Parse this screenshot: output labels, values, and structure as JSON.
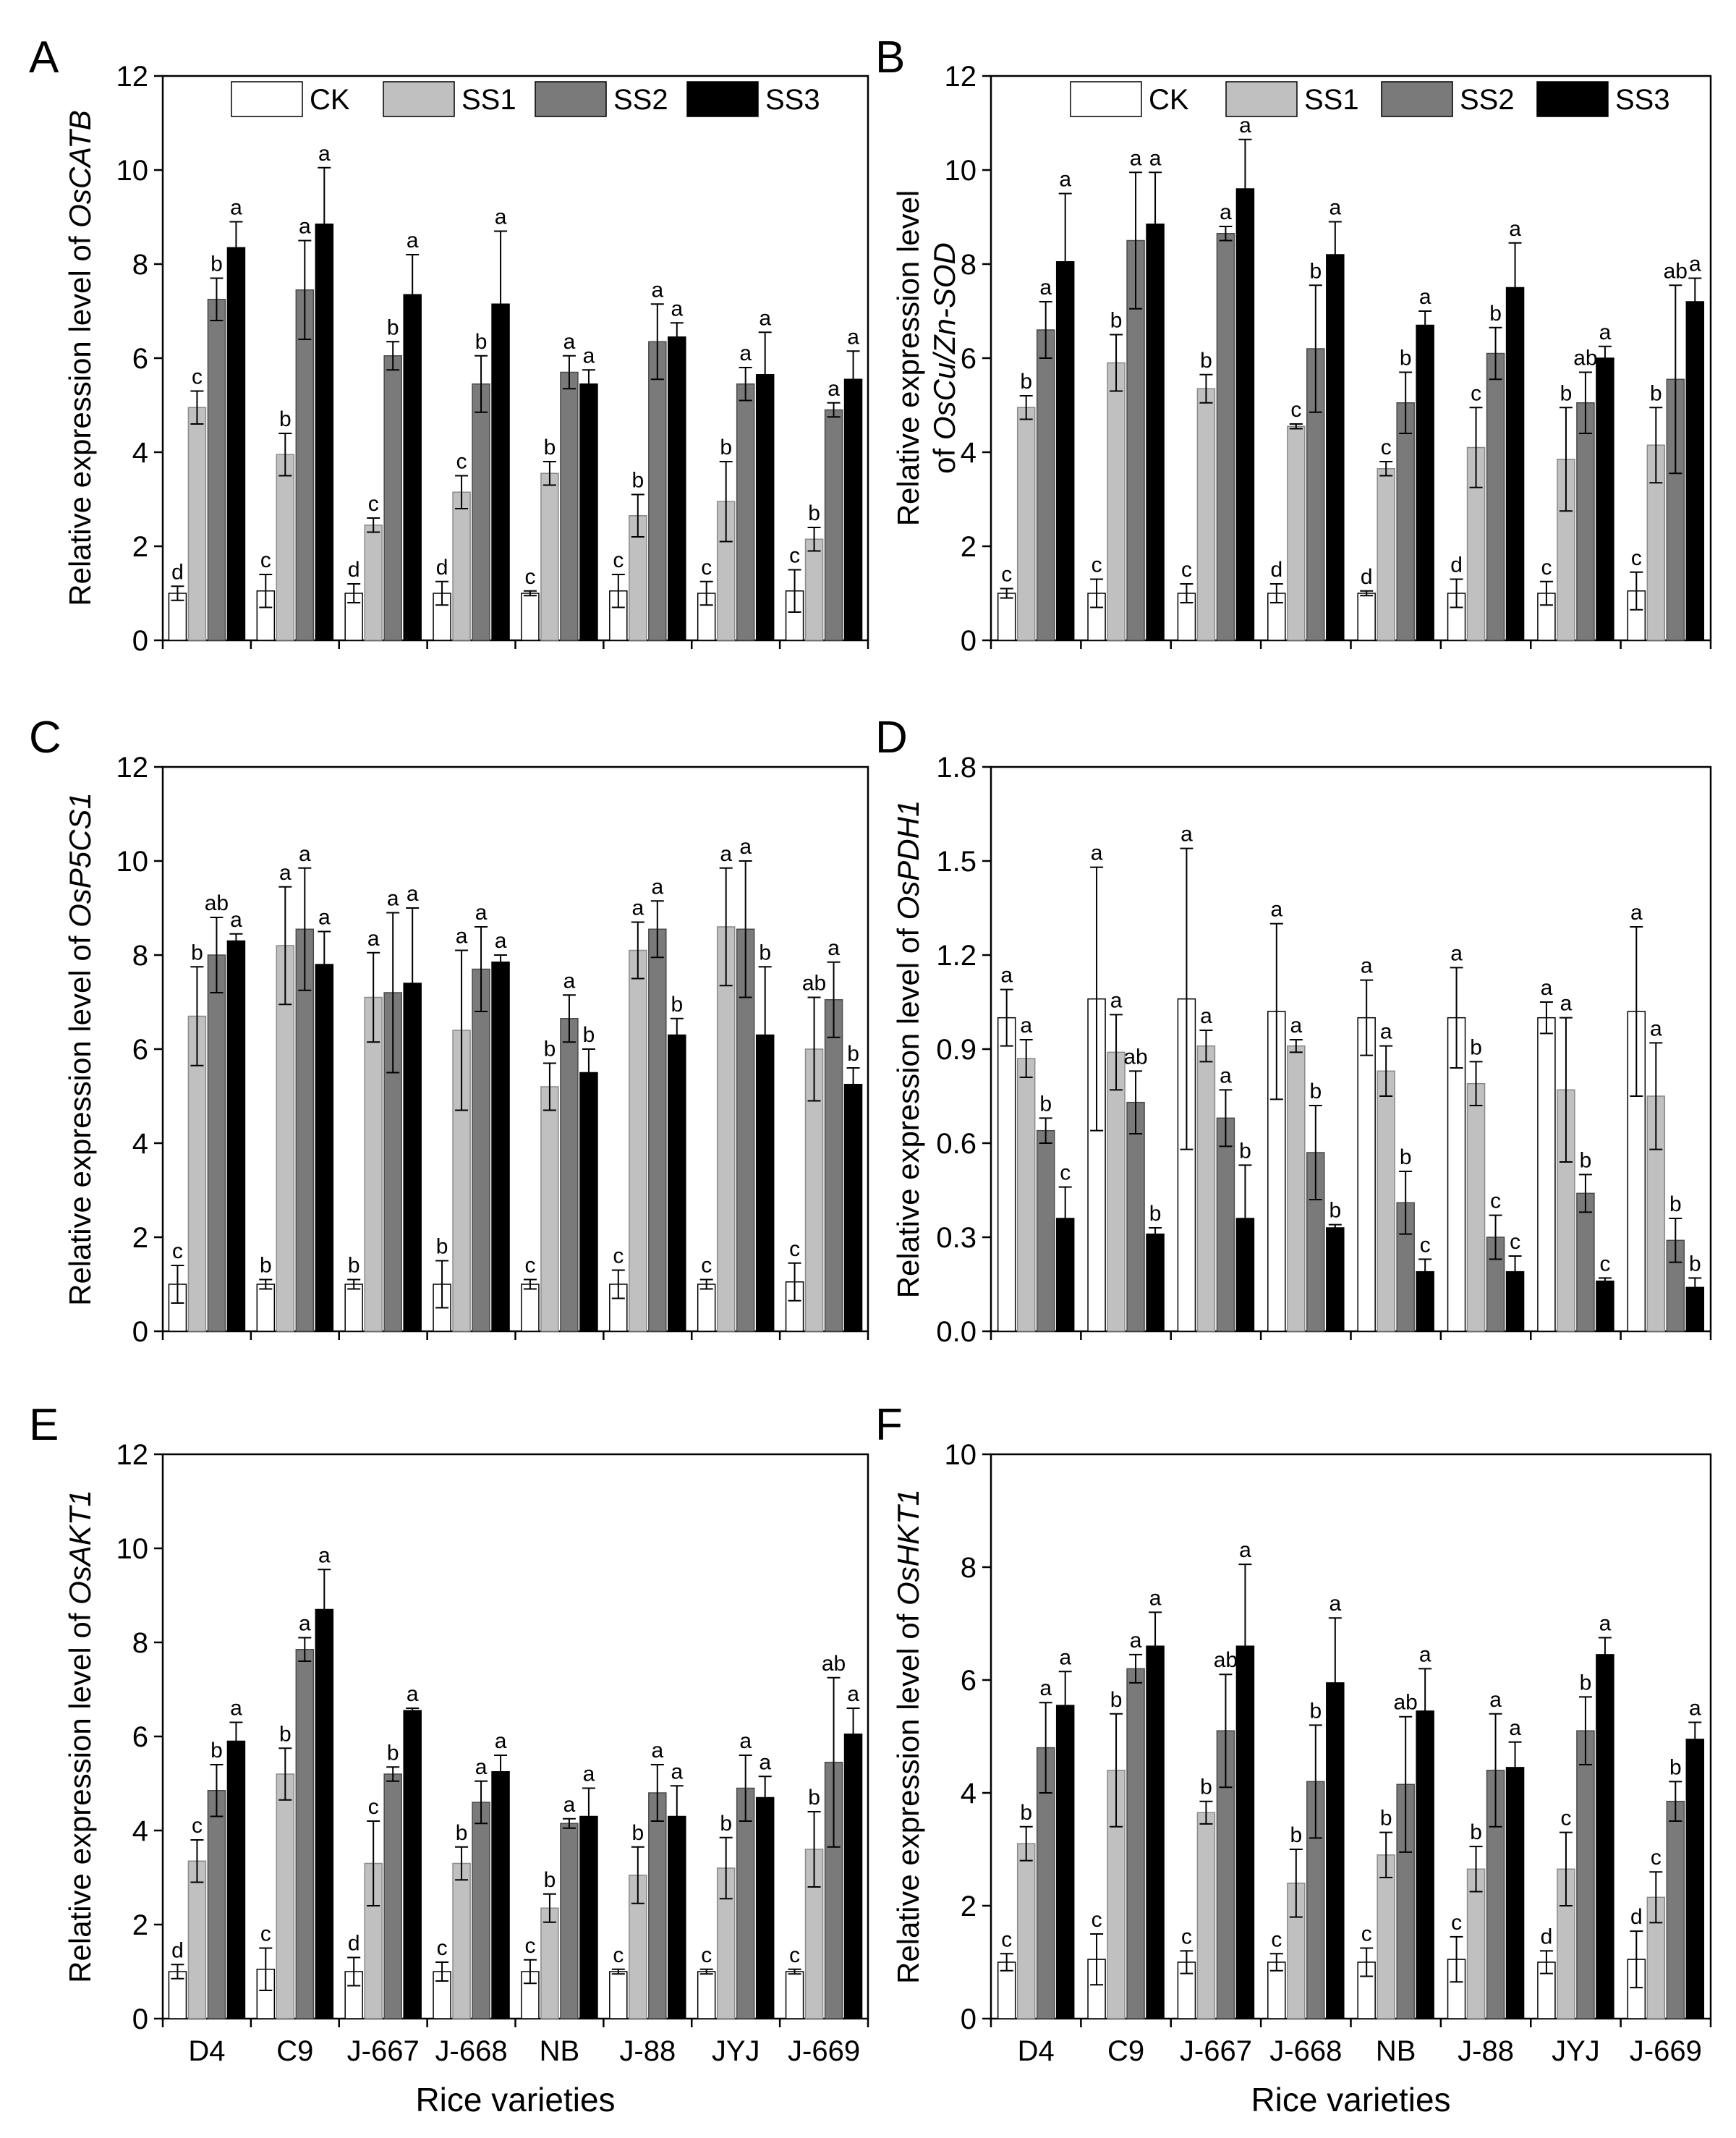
{
  "figure": {
    "x_axis_title": "Rice varieties",
    "categories": [
      "D4",
      "C9",
      "J-667",
      "J-668",
      "NB",
      "J-88",
      "JYJ",
      "J-669"
    ],
    "legend": [
      {
        "label": "CK",
        "color": "#ffffff"
      },
      {
        "label": "SS1",
        "color": "#c0c0c0"
      },
      {
        "label": "SS2",
        "color": "#7a7a7a"
      },
      {
        "label": "SS3",
        "color": "#000000"
      }
    ]
  },
  "chart_data": [
    {
      "panel": "A",
      "type": "bar",
      "ylabel_prefix": "Relative expression level of ",
      "gene": "OsCATB",
      "ylim": [
        0,
        12
      ],
      "yticks": [
        0,
        2,
        4,
        6,
        8,
        10,
        12
      ],
      "decimals": 0,
      "categories": [
        "D4",
        "C9",
        "J-667",
        "J-668",
        "NB",
        "J-88",
        "JYJ",
        "J-669"
      ],
      "series": [
        {
          "name": "CK",
          "values": [
            1.0,
            1.05,
            1.0,
            1.0,
            1.0,
            1.05,
            1.0,
            1.05
          ],
          "errors": [
            0.15,
            0.35,
            0.2,
            0.25,
            0.05,
            0.35,
            0.25,
            0.45
          ],
          "letters": [
            "d",
            "c",
            "d",
            "d",
            "c",
            "c",
            "c",
            "c"
          ]
        },
        {
          "name": "SS1",
          "values": [
            4.95,
            3.95,
            2.45,
            3.15,
            3.55,
            2.65,
            2.95,
            2.15
          ],
          "errors": [
            0.35,
            0.45,
            0.15,
            0.35,
            0.25,
            0.45,
            0.85,
            0.25
          ],
          "letters": [
            "c",
            "b",
            "c",
            "c",
            "b",
            "b",
            "b",
            "b"
          ]
        },
        {
          "name": "SS2",
          "values": [
            7.25,
            7.45,
            6.05,
            5.45,
            5.7,
            6.35,
            5.45,
            4.9
          ],
          "errors": [
            0.45,
            1.05,
            0.3,
            0.6,
            0.35,
            0.8,
            0.35,
            0.15
          ],
          "letters": [
            "b",
            "a",
            "b",
            "b",
            "a",
            "a",
            "a",
            "a"
          ]
        },
        {
          "name": "SS3",
          "values": [
            8.35,
            8.85,
            7.35,
            7.15,
            5.45,
            6.45,
            5.65,
            5.55
          ],
          "errors": [
            0.55,
            1.2,
            0.85,
            1.55,
            0.3,
            0.3,
            0.9,
            0.6
          ],
          "letters": [
            "a",
            "a",
            "a",
            "a",
            "a",
            "a",
            "a",
            "a"
          ]
        }
      ]
    },
    {
      "panel": "B",
      "type": "bar",
      "ylabel_prefix": "Relative expression level",
      "ylabel_line2_prefix": "of ",
      "gene": "OsCu/Zn-SOD",
      "ylim": [
        0,
        12
      ],
      "yticks": [
        0,
        2,
        4,
        6,
        8,
        10,
        12
      ],
      "decimals": 0,
      "categories": [
        "D4",
        "C9",
        "J-667",
        "J-668",
        "NB",
        "J-88",
        "JYJ",
        "J-669"
      ],
      "series": [
        {
          "name": "CK",
          "values": [
            1.0,
            1.0,
            1.0,
            1.0,
            1.0,
            1.0,
            1.0,
            1.05
          ],
          "errors": [
            0.1,
            0.3,
            0.2,
            0.2,
            0.05,
            0.3,
            0.25,
            0.4
          ],
          "letters": [
            "c",
            "c",
            "c",
            "d",
            "d",
            "d",
            "c",
            "c"
          ]
        },
        {
          "name": "SS1",
          "values": [
            4.95,
            5.9,
            5.35,
            4.55,
            3.65,
            4.1,
            3.85,
            4.15
          ],
          "errors": [
            0.25,
            0.6,
            0.3,
            0.05,
            0.15,
            0.85,
            1.1,
            0.8
          ],
          "letters": [
            "b",
            "b",
            "b",
            "c",
            "c",
            "c",
            "b",
            "b"
          ]
        },
        {
          "name": "SS2",
          "values": [
            6.6,
            8.5,
            8.65,
            6.2,
            5.05,
            6.1,
            5.05,
            5.55
          ],
          "errors": [
            0.6,
            1.45,
            0.15,
            1.35,
            0.65,
            0.55,
            0.65,
            2.0
          ],
          "letters": [
            "a",
            "a",
            "a",
            "b",
            "b",
            "b",
            "ab",
            "ab"
          ]
        },
        {
          "name": "SS3",
          "values": [
            8.05,
            8.85,
            9.6,
            8.2,
            6.7,
            7.5,
            6.0,
            7.2
          ],
          "errors": [
            1.45,
            1.1,
            1.05,
            0.7,
            0.3,
            0.95,
            0.25,
            0.5
          ],
          "letters": [
            "a",
            "a",
            "a",
            "a",
            "a",
            "a",
            "a",
            "a"
          ]
        }
      ]
    },
    {
      "panel": "C",
      "type": "bar",
      "ylabel_prefix": "Relative expression level of ",
      "gene": "OsP5CS1",
      "ylim": [
        0,
        12
      ],
      "yticks": [
        0,
        2,
        4,
        6,
        8,
        10,
        12
      ],
      "decimals": 0,
      "categories": [
        "D4",
        "C9",
        "J-667",
        "J-668",
        "NB",
        "J-88",
        "JYJ",
        "J-669"
      ],
      "series": [
        {
          "name": "CK",
          "values": [
            1.0,
            1.0,
            1.0,
            1.0,
            1.0,
            1.0,
            1.0,
            1.05
          ],
          "errors": [
            0.4,
            0.1,
            0.1,
            0.5,
            0.1,
            0.3,
            0.1,
            0.4
          ],
          "letters": [
            "c",
            "b",
            "b",
            "b",
            "c",
            "c",
            "c",
            "c"
          ]
        },
        {
          "name": "SS1",
          "values": [
            6.7,
            8.2,
            7.1,
            6.4,
            5.2,
            8.1,
            8.6,
            6.0
          ],
          "errors": [
            1.05,
            1.25,
            0.95,
            1.7,
            0.5,
            0.6,
            1.25,
            1.1
          ],
          "letters": [
            "b",
            "a",
            "a",
            "a",
            "b",
            "a",
            "a",
            "ab"
          ]
        },
        {
          "name": "SS2",
          "values": [
            8.0,
            8.55,
            7.2,
            7.7,
            6.65,
            8.55,
            8.55,
            7.05
          ],
          "errors": [
            0.8,
            1.3,
            1.7,
            0.9,
            0.5,
            0.6,
            1.45,
            0.8
          ],
          "letters": [
            "ab",
            "a",
            "a",
            "a",
            "a",
            "a",
            "a",
            "a"
          ]
        },
        {
          "name": "SS3",
          "values": [
            8.3,
            7.8,
            7.4,
            7.85,
            5.5,
            6.3,
            6.3,
            5.25
          ],
          "errors": [
            0.15,
            0.7,
            1.6,
            0.15,
            0.5,
            0.35,
            1.45,
            0.35
          ],
          "letters": [
            "a",
            "a",
            "a",
            "a",
            "b",
            "b",
            "b",
            "b"
          ]
        }
      ]
    },
    {
      "panel": "D",
      "type": "bar",
      "ylabel_prefix": "Relative expression level of ",
      "gene": "OsPDH1",
      "ylim": [
        0,
        1.8
      ],
      "yticks": [
        0.0,
        0.3,
        0.6,
        0.9,
        1.2,
        1.5,
        1.8
      ],
      "decimals": 1,
      "categories": [
        "D4",
        "C9",
        "J-667",
        "J-668",
        "NB",
        "J-88",
        "JYJ",
        "J-669"
      ],
      "series": [
        {
          "name": "CK",
          "values": [
            1.0,
            1.06,
            1.06,
            1.02,
            1.0,
            1.0,
            1.0,
            1.02
          ],
          "errors": [
            0.09,
            0.42,
            0.48,
            0.28,
            0.12,
            0.16,
            0.05,
            0.27
          ],
          "letters": [
            "a",
            "a",
            "a",
            "a",
            "a",
            "a",
            "a",
            "a"
          ]
        },
        {
          "name": "SS1",
          "values": [
            0.87,
            0.89,
            0.91,
            0.91,
            0.83,
            0.79,
            0.77,
            0.75
          ],
          "errors": [
            0.06,
            0.12,
            0.05,
            0.02,
            0.08,
            0.07,
            0.23,
            0.17
          ],
          "letters": [
            "a",
            "a",
            "a",
            "a",
            "a",
            "b",
            "a",
            "a"
          ]
        },
        {
          "name": "SS2",
          "values": [
            0.64,
            0.73,
            0.68,
            0.57,
            0.41,
            0.3,
            0.44,
            0.29
          ],
          "errors": [
            0.04,
            0.1,
            0.09,
            0.15,
            0.1,
            0.07,
            0.06,
            0.07
          ],
          "letters": [
            "b",
            "ab",
            "a",
            "b",
            "b",
            "c",
            "b",
            "b"
          ]
        },
        {
          "name": "SS3",
          "values": [
            0.36,
            0.31,
            0.36,
            0.33,
            0.19,
            0.19,
            0.16,
            0.14
          ],
          "errors": [
            0.1,
            0.02,
            0.17,
            0.01,
            0.04,
            0.05,
            0.01,
            0.03
          ],
          "letters": [
            "c",
            "b",
            "b",
            "b",
            "c",
            "c",
            "c",
            "b"
          ]
        }
      ]
    },
    {
      "panel": "E",
      "type": "bar",
      "ylabel_prefix": "Relative expression level of ",
      "gene": "OsAKT1",
      "ylim": [
        0,
        12
      ],
      "yticks": [
        0,
        2,
        4,
        6,
        8,
        10,
        12
      ],
      "decimals": 0,
      "categories": [
        "D4",
        "C9",
        "J-667",
        "J-668",
        "NB",
        "J-88",
        "JYJ",
        "J-669"
      ],
      "series": [
        {
          "name": "CK",
          "values": [
            1.0,
            1.05,
            1.0,
            1.0,
            1.0,
            1.0,
            1.0,
            1.0
          ],
          "errors": [
            0.15,
            0.45,
            0.3,
            0.2,
            0.25,
            0.05,
            0.05,
            0.05
          ],
          "letters": [
            "d",
            "c",
            "d",
            "c",
            "c",
            "c",
            "c",
            "c"
          ]
        },
        {
          "name": "SS1",
          "values": [
            3.35,
            5.2,
            3.3,
            3.3,
            2.35,
            3.05,
            3.2,
            3.6
          ],
          "errors": [
            0.45,
            0.55,
            0.9,
            0.35,
            0.3,
            0.6,
            0.65,
            0.8
          ],
          "letters": [
            "c",
            "b",
            "c",
            "b",
            "b",
            "b",
            "b",
            "b"
          ]
        },
        {
          "name": "SS2",
          "values": [
            4.85,
            7.85,
            5.2,
            4.6,
            4.15,
            4.8,
            4.9,
            5.45
          ],
          "errors": [
            0.55,
            0.25,
            0.15,
            0.45,
            0.1,
            0.6,
            0.7,
            1.8
          ],
          "letters": [
            "b",
            "a",
            "b",
            "a",
            "a",
            "a",
            "a",
            "ab"
          ]
        },
        {
          "name": "SS3",
          "values": [
            5.9,
            8.7,
            6.55,
            5.25,
            4.3,
            4.3,
            4.7,
            6.05
          ],
          "errors": [
            0.4,
            0.85,
            0.05,
            0.35,
            0.6,
            0.65,
            0.45,
            0.55
          ],
          "letters": [
            "a",
            "a",
            "a",
            "a",
            "a",
            "a",
            "a",
            "a"
          ]
        }
      ]
    },
    {
      "panel": "F",
      "type": "bar",
      "ylabel_prefix": "Relative expression level of ",
      "gene": "OsHKT1",
      "ylim": [
        0,
        10
      ],
      "yticks": [
        0,
        2,
        4,
        6,
        8,
        10
      ],
      "decimals": 0,
      "categories": [
        "D4",
        "C9",
        "J-667",
        "J-668",
        "NB",
        "J-88",
        "JYJ",
        "J-669"
      ],
      "series": [
        {
          "name": "CK",
          "values": [
            1.0,
            1.05,
            1.0,
            1.0,
            1.0,
            1.05,
            1.0,
            1.05
          ],
          "errors": [
            0.15,
            0.45,
            0.2,
            0.15,
            0.25,
            0.4,
            0.2,
            0.5
          ],
          "letters": [
            "c",
            "c",
            "c",
            "c",
            "c",
            "c",
            "d",
            "d"
          ]
        },
        {
          "name": "SS1",
          "values": [
            3.1,
            4.4,
            3.65,
            2.4,
            2.9,
            2.65,
            2.65,
            2.15
          ],
          "errors": [
            0.3,
            1.0,
            0.2,
            0.6,
            0.4,
            0.4,
            0.65,
            0.45
          ],
          "letters": [
            "b",
            "b",
            "b",
            "b",
            "b",
            "b",
            "c",
            "c"
          ]
        },
        {
          "name": "SS2",
          "values": [
            4.8,
            6.2,
            5.1,
            4.2,
            4.15,
            4.4,
            5.1,
            3.85
          ],
          "errors": [
            0.8,
            0.25,
            1.0,
            1.0,
            1.2,
            1.0,
            0.6,
            0.35
          ],
          "letters": [
            "a",
            "a",
            "ab",
            "b",
            "ab",
            "a",
            "b",
            "b"
          ]
        },
        {
          "name": "SS3",
          "values": [
            5.55,
            6.6,
            6.6,
            5.95,
            5.45,
            4.45,
            6.45,
            4.95
          ],
          "errors": [
            0.6,
            0.6,
            1.45,
            1.15,
            0.75,
            0.45,
            0.3,
            0.3
          ],
          "letters": [
            "a",
            "a",
            "a",
            "a",
            "a",
            "a",
            "a",
            "a"
          ]
        }
      ]
    }
  ]
}
